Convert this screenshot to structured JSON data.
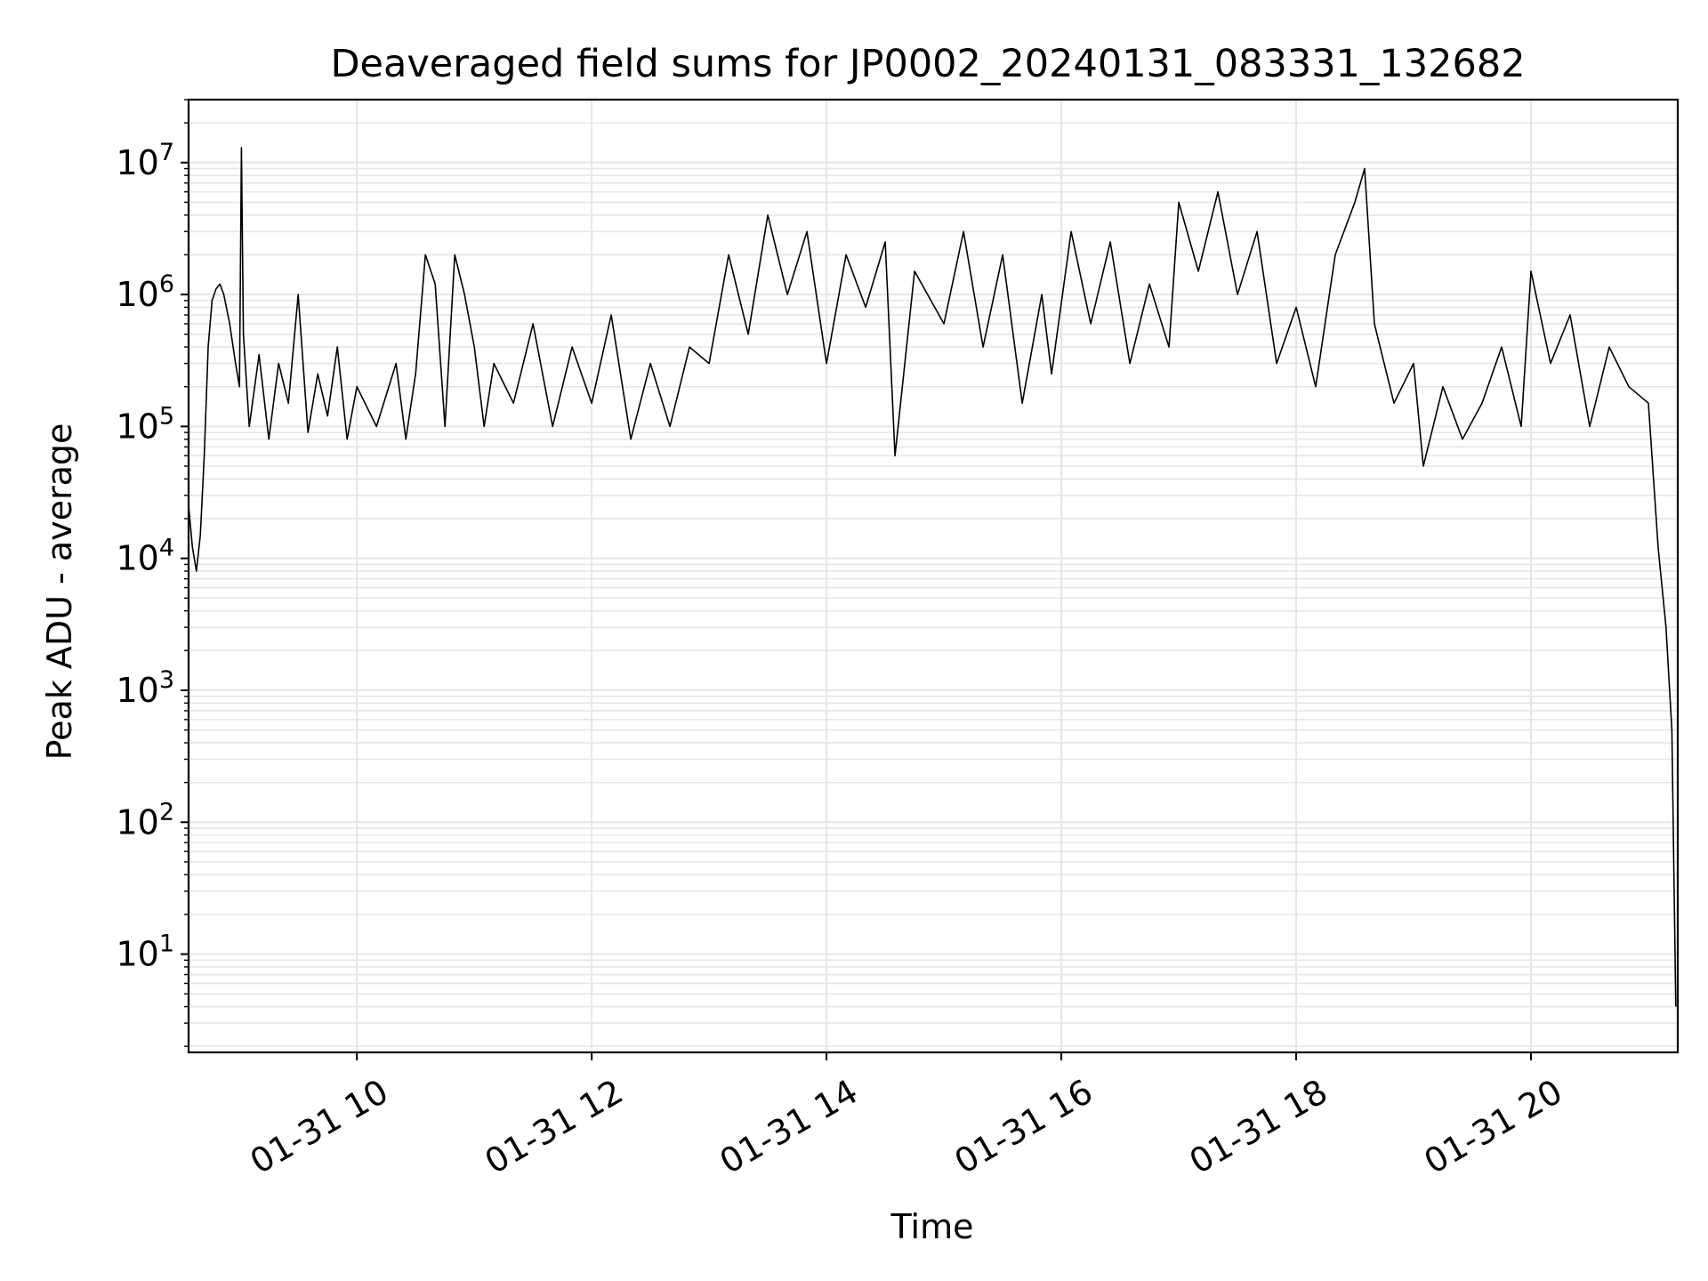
{
  "chart_data": {
    "type": "line",
    "title": "Deaveraged field sums for JP0002_20240131_083331_132682",
    "xlabel": "Time",
    "ylabel": "Peak ADU - average",
    "y_scale": "log",
    "grid": true,
    "line_color": "#000000",
    "grid_color": "#e6e6e6",
    "xlim": [
      "2024-01-31T08:34",
      "2024-01-31T21:15"
    ],
    "ylim": [
      1.8,
      30000000
    ],
    "x_ticks": [
      {
        "value": "2024-01-31T10:00",
        "label": "01-31 10"
      },
      {
        "value": "2024-01-31T12:00",
        "label": "01-31 12"
      },
      {
        "value": "2024-01-31T14:00",
        "label": "01-31 14"
      },
      {
        "value": "2024-01-31T16:00",
        "label": "01-31 16"
      },
      {
        "value": "2024-01-31T18:00",
        "label": "01-31 18"
      },
      {
        "value": "2024-01-31T20:00",
        "label": "01-31 20"
      }
    ],
    "y_ticks": [
      {
        "value": 10,
        "base": "10",
        "exp": "1"
      },
      {
        "value": 100,
        "base": "10",
        "exp": "2"
      },
      {
        "value": 1000,
        "base": "10",
        "exp": "3"
      },
      {
        "value": 10000,
        "base": "10",
        "exp": "4"
      },
      {
        "value": 100000,
        "base": "10",
        "exp": "5"
      },
      {
        "value": 1000000,
        "base": "10",
        "exp": "6"
      },
      {
        "value": 10000000,
        "base": "10",
        "exp": "7"
      }
    ],
    "series": [
      {
        "points": [
          [
            "2024-01-31T08:34",
            25000
          ],
          [
            "2024-01-31T08:36",
            12000
          ],
          [
            "2024-01-31T08:38",
            8000
          ],
          [
            "2024-01-31T08:40",
            15000
          ],
          [
            "2024-01-31T08:42",
            60000
          ],
          [
            "2024-01-31T08:44",
            400000
          ],
          [
            "2024-01-31T08:46",
            900000
          ],
          [
            "2024-01-31T08:48",
            1100000
          ],
          [
            "2024-01-31T08:50",
            1200000
          ],
          [
            "2024-01-31T08:52",
            1000000
          ],
          [
            "2024-01-31T08:55",
            600000
          ],
          [
            "2024-01-31T08:58",
            300000
          ],
          [
            "2024-01-31T09:00",
            200000
          ],
          [
            "2024-01-31T09:01",
            13000000
          ],
          [
            "2024-01-31T09:02",
            500000
          ],
          [
            "2024-01-31T09:05",
            100000
          ],
          [
            "2024-01-31T09:10",
            350000
          ],
          [
            "2024-01-31T09:15",
            80000
          ],
          [
            "2024-01-31T09:20",
            300000
          ],
          [
            "2024-01-31T09:25",
            150000
          ],
          [
            "2024-01-31T09:30",
            1000000
          ],
          [
            "2024-01-31T09:35",
            90000
          ],
          [
            "2024-01-31T09:40",
            250000
          ],
          [
            "2024-01-31T09:45",
            120000
          ],
          [
            "2024-01-31T09:50",
            400000
          ],
          [
            "2024-01-31T09:55",
            80000
          ],
          [
            "2024-01-31T10:00",
            200000
          ],
          [
            "2024-01-31T10:10",
            100000
          ],
          [
            "2024-01-31T10:20",
            300000
          ],
          [
            "2024-01-31T10:25",
            80000
          ],
          [
            "2024-01-31T10:30",
            250000
          ],
          [
            "2024-01-31T10:35",
            2000000
          ],
          [
            "2024-01-31T10:40",
            1200000
          ],
          [
            "2024-01-31T10:45",
            100000
          ],
          [
            "2024-01-31T10:50",
            2000000
          ],
          [
            "2024-01-31T10:55",
            1000000
          ],
          [
            "2024-01-31T11:00",
            400000
          ],
          [
            "2024-01-31T11:05",
            100000
          ],
          [
            "2024-01-31T11:10",
            300000
          ],
          [
            "2024-01-31T11:20",
            150000
          ],
          [
            "2024-01-31T11:30",
            600000
          ],
          [
            "2024-01-31T11:40",
            100000
          ],
          [
            "2024-01-31T11:50",
            400000
          ],
          [
            "2024-01-31T12:00",
            150000
          ],
          [
            "2024-01-31T12:10",
            700000
          ],
          [
            "2024-01-31T12:20",
            80000
          ],
          [
            "2024-01-31T12:30",
            300000
          ],
          [
            "2024-01-31T12:40",
            100000
          ],
          [
            "2024-01-31T12:50",
            400000
          ],
          [
            "2024-01-31T13:00",
            300000
          ],
          [
            "2024-01-31T13:10",
            2000000
          ],
          [
            "2024-01-31T13:20",
            500000
          ],
          [
            "2024-01-31T13:30",
            4000000
          ],
          [
            "2024-01-31T13:40",
            1000000
          ],
          [
            "2024-01-31T13:50",
            3000000
          ],
          [
            "2024-01-31T14:00",
            300000
          ],
          [
            "2024-01-31T14:10",
            2000000
          ],
          [
            "2024-01-31T14:20",
            800000
          ],
          [
            "2024-01-31T14:30",
            2500000
          ],
          [
            "2024-01-31T14:35",
            60000
          ],
          [
            "2024-01-31T14:45",
            1500000
          ],
          [
            "2024-01-31T15:00",
            600000
          ],
          [
            "2024-01-31T15:10",
            3000000
          ],
          [
            "2024-01-31T15:20",
            400000
          ],
          [
            "2024-01-31T15:30",
            2000000
          ],
          [
            "2024-01-31T15:40",
            150000
          ],
          [
            "2024-01-31T15:50",
            1000000
          ],
          [
            "2024-01-31T15:55",
            250000
          ],
          [
            "2024-01-31T16:05",
            3000000
          ],
          [
            "2024-01-31T16:15",
            600000
          ],
          [
            "2024-01-31T16:25",
            2500000
          ],
          [
            "2024-01-31T16:35",
            300000
          ],
          [
            "2024-01-31T16:45",
            1200000
          ],
          [
            "2024-01-31T16:55",
            400000
          ],
          [
            "2024-01-31T17:00",
            5000000
          ],
          [
            "2024-01-31T17:10",
            1500000
          ],
          [
            "2024-01-31T17:20",
            6000000
          ],
          [
            "2024-01-31T17:30",
            1000000
          ],
          [
            "2024-01-31T17:40",
            3000000
          ],
          [
            "2024-01-31T17:50",
            300000
          ],
          [
            "2024-01-31T18:00",
            800000
          ],
          [
            "2024-01-31T18:10",
            200000
          ],
          [
            "2024-01-31T18:20",
            2000000
          ],
          [
            "2024-01-31T18:30",
            5000000
          ],
          [
            "2024-01-31T18:35",
            9000000
          ],
          [
            "2024-01-31T18:40",
            600000
          ],
          [
            "2024-01-31T18:50",
            150000
          ],
          [
            "2024-01-31T19:00",
            300000
          ],
          [
            "2024-01-31T19:05",
            50000
          ],
          [
            "2024-01-31T19:15",
            200000
          ],
          [
            "2024-01-31T19:25",
            80000
          ],
          [
            "2024-01-31T19:35",
            150000
          ],
          [
            "2024-01-31T19:45",
            400000
          ],
          [
            "2024-01-31T19:55",
            100000
          ],
          [
            "2024-01-31T20:00",
            1500000
          ],
          [
            "2024-01-31T20:10",
            300000
          ],
          [
            "2024-01-31T20:20",
            700000
          ],
          [
            "2024-01-31T20:30",
            100000
          ],
          [
            "2024-01-31T20:40",
            400000
          ],
          [
            "2024-01-31T20:50",
            200000
          ],
          [
            "2024-01-31T21:00",
            150000
          ],
          [
            "2024-01-31T21:05",
            12000
          ],
          [
            "2024-01-31T21:09",
            3000
          ],
          [
            "2024-01-31T21:12",
            500
          ],
          [
            "2024-01-31T21:14",
            4
          ]
        ]
      }
    ]
  }
}
